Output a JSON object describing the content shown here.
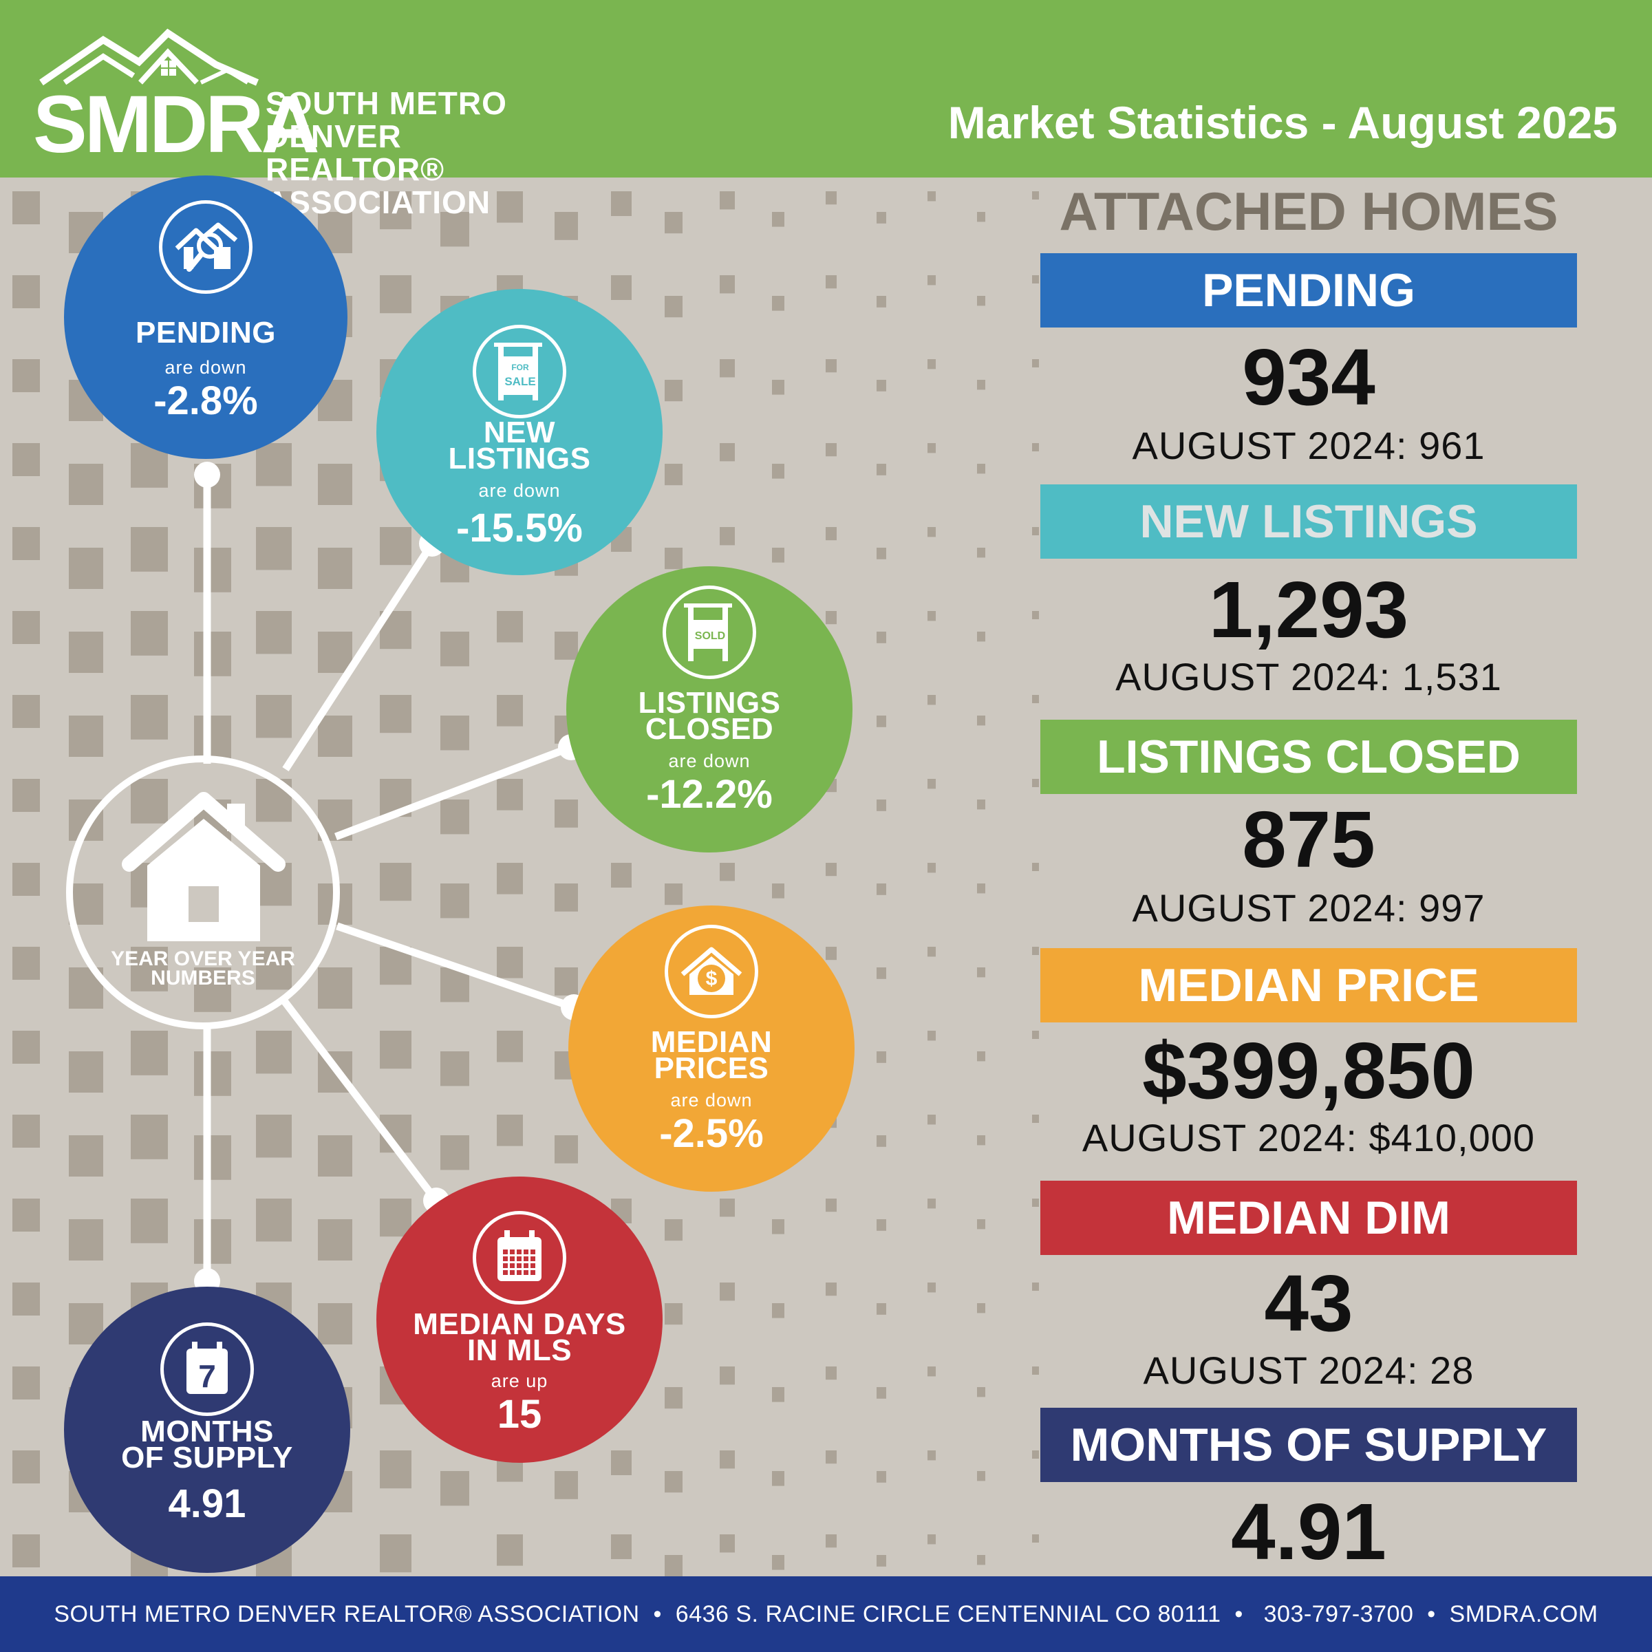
{
  "header": {
    "logo_abbr": "SMDRA",
    "logo_line1": "SOUTH METRO DENVER",
    "logo_line2": "REALTOR® ASSOCIATION",
    "title": "Market Statistics - August 2025"
  },
  "hub": {
    "label_line1": "YEAR OVER YEAR",
    "label_line2": "NUMBERS"
  },
  "circles": [
    {
      "label1": "PENDING",
      "label2": "",
      "sub": "are down",
      "value": "-2.8%",
      "color": "#2a6fbd",
      "icon": "house-search-icon"
    },
    {
      "label1": "NEW",
      "label2": "LISTINGS",
      "sub": "are down",
      "value": "-15.5%",
      "color": "#4fbcc4",
      "icon": "for-sale-sign-icon",
      "icon_text1": "FOR",
      "icon_text2": "SALE"
    },
    {
      "label1": "LISTINGS",
      "label2": "CLOSED",
      "sub": "are down",
      "value": "-12.2%",
      "color": "#7ab550",
      "icon": "sold-sign-icon",
      "icon_text1": "SOLD"
    },
    {
      "label1": "MEDIAN",
      "label2": "PRICES",
      "sub": "are down",
      "value": "-2.5%",
      "color": "#f2a736",
      "icon": "house-dollar-icon"
    },
    {
      "label1": "MEDIAN DAYS",
      "label2": "IN MLS",
      "sub": "are up",
      "value": "15",
      "color": "#c4333a",
      "icon": "calendar-icon"
    },
    {
      "label1": "MONTHS",
      "label2": "OF SUPPLY",
      "sub": "",
      "value": "4.91",
      "color": "#2f3a72",
      "icon": "calendar-7-icon",
      "icon_text1": "7"
    }
  ],
  "right": {
    "title": "ATTACHED HOMES",
    "stats": [
      {
        "label": "PENDING",
        "value": "934",
        "prev": "AUGUST 2024: 961",
        "color": "#2a6fbd",
        "label_color": "#ffffff"
      },
      {
        "label": "NEW LISTINGS",
        "value": "1,293",
        "prev": "AUGUST 2024: 1,531",
        "color": "#4fbcc4",
        "label_color": "#dfe3e3"
      },
      {
        "label": "LISTINGS CLOSED",
        "value": "875",
        "prev": "AUGUST 2024: 997",
        "color": "#7ab550",
        "label_color": "#ffffff"
      },
      {
        "label": "MEDIAN PRICE",
        "value": "$399,850",
        "prev": "AUGUST 2024: $410,000",
        "color": "#f2a736",
        "label_color": "#ffffff"
      },
      {
        "label": "MEDIAN DIM",
        "value": "43",
        "prev": "AUGUST 2024: 28",
        "color": "#c4333a",
        "label_color": "#ffffff"
      },
      {
        "label": "MONTHS OF SUPPLY",
        "value": "4.91",
        "prev": "",
        "color": "#2f3a72",
        "label_color": "#ffffff"
      }
    ]
  },
  "footer": {
    "text": "SOUTH METRO DENVER REALTOR® ASSOCIATION  •  6436 S. RACINE CIRCLE CENTENNIAL CO 80111  •   303-797-3700  •  SMDRA.COM"
  }
}
